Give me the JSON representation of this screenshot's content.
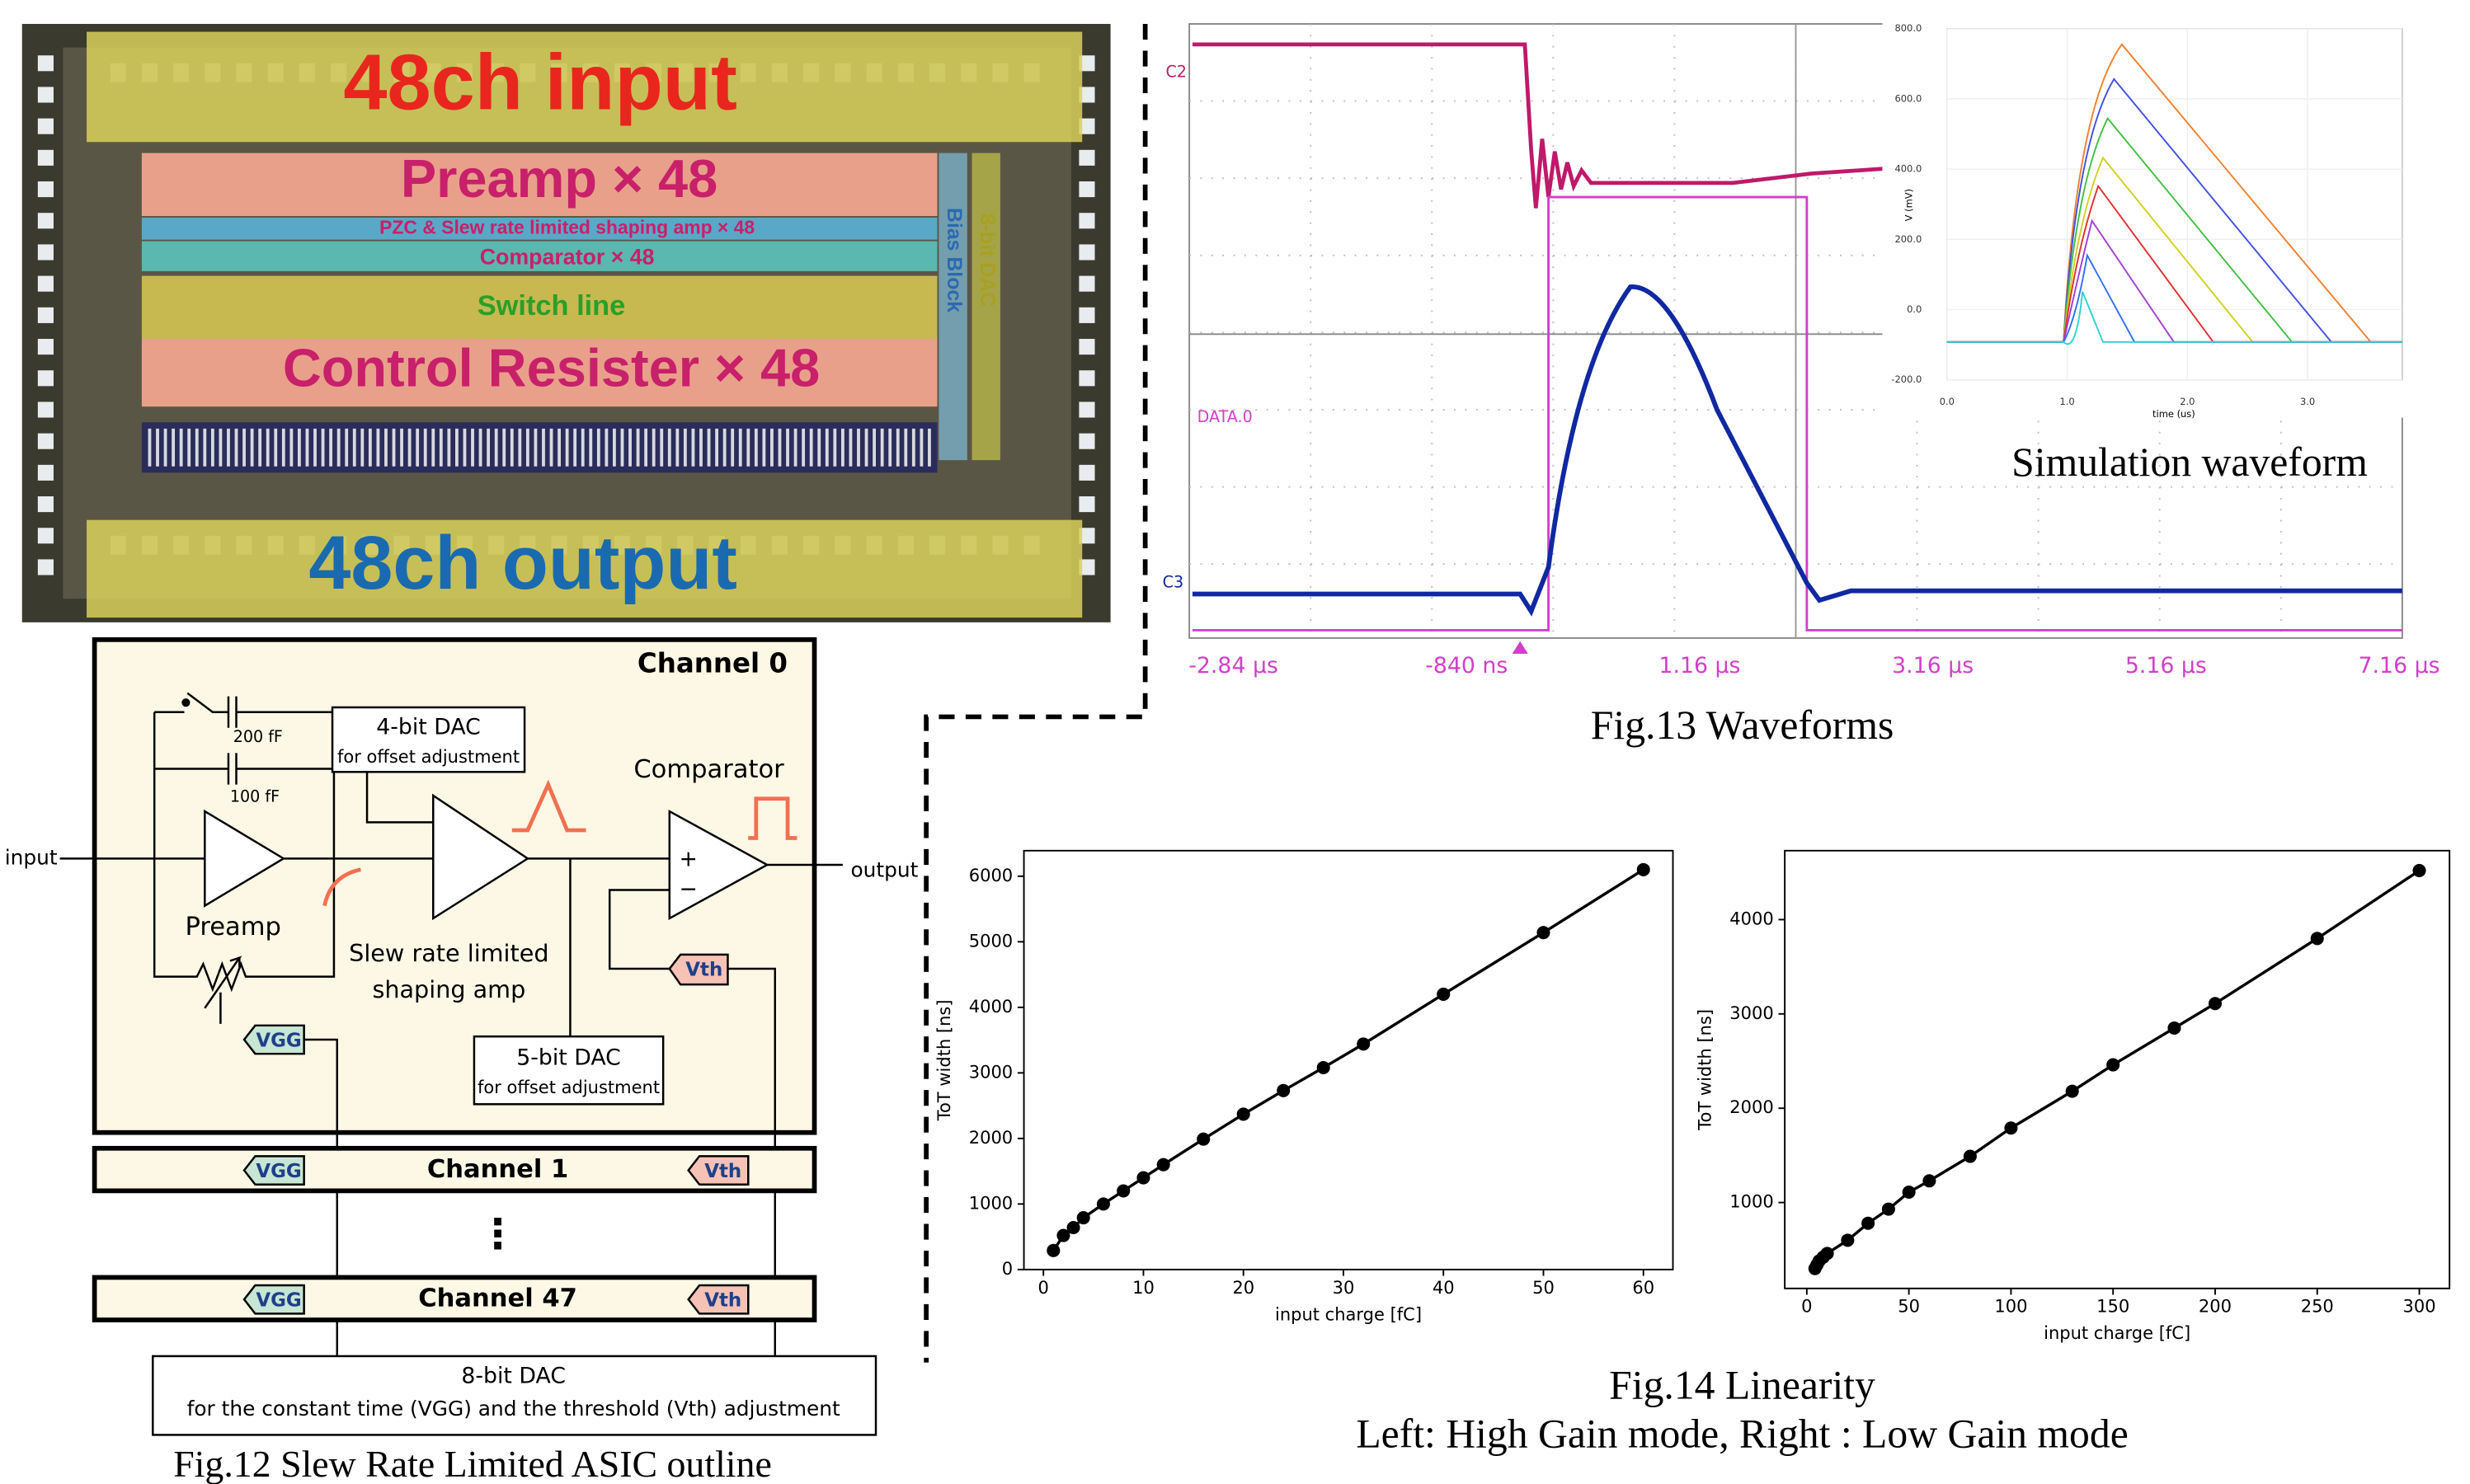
{
  "chip_photo": {
    "labels": {
      "input": "48ch input",
      "preamp": "Preamp × 48",
      "shaping": "PZC & Slew rate limited shaping amp × 48",
      "comparator": "Comparator × 48",
      "switch": "Switch line",
      "control": "Control Resister × 48",
      "output": "48ch output",
      "bias": "Bias Block",
      "dac": "8-bit DAC"
    }
  },
  "schematic": {
    "channel0": "Channel 0",
    "dac4": {
      "title": "4-bit DAC",
      "sub": "for offset adjustment"
    },
    "comparator": "Comparator",
    "cap1": "200 fF",
    "cap2": "100 fF",
    "input": "input",
    "output": "output",
    "preamp": "Preamp",
    "shaper": [
      "Slew rate limited",
      "shaping amp"
    ],
    "plus": "+",
    "minus": "−",
    "vth": "Vth",
    "vgg": "VGG",
    "dac5": {
      "title": "5-bit DAC",
      "sub": "for offset adjustment"
    },
    "channel1": "Channel 1",
    "dots": "⋮",
    "channel47": "Channel 47",
    "dac8": {
      "title": "8-bit DAC",
      "sub": "for the constant time (VGG) and the threshold (Vth) adjustment"
    },
    "caption": "Fig.12 Slew Rate Limited ASIC outline"
  },
  "waveforms": {
    "traces": {
      "c2": "C2",
      "data0": "DATA.0",
      "c3": "C3"
    },
    "xticks": [
      "-2.84 µs",
      "-840 ns",
      "1.16 µs",
      "3.16 µs",
      "5.16 µs",
      "7.16 µs"
    ],
    "inset": {
      "yticks": [
        "800.0",
        "600.0",
        "400.0",
        "200.0",
        "0.0",
        "-200.0"
      ],
      "xticks": [
        "0.0",
        "1.0",
        "2.0",
        "3.0"
      ],
      "ylabel": "V (mV)",
      "xlabel": "time (us)",
      "title": "Simulation waveform"
    },
    "caption": "Fig.13 Waveforms"
  },
  "chart_data": [
    {
      "type": "scatter",
      "x_label": "input charge [fC]",
      "y_label": "ToT width [ns]",
      "x": [
        1,
        2,
        3,
        4,
        6,
        8,
        10,
        12,
        16,
        20,
        24,
        28,
        32,
        40,
        50,
        60
      ],
      "values": [
        290,
        520,
        640,
        790,
        1000,
        1200,
        1400,
        1600,
        1990,
        2370,
        2730,
        3080,
        3440,
        4200,
        5140,
        6100
      ],
      "color": "#000000",
      "xlim": [
        -1.95,
        62.95
      ],
      "ylim": [
        0,
        6390
      ],
      "xticks": [
        0,
        10,
        20,
        30,
        40,
        50,
        60
      ],
      "yticks": [
        0,
        1000,
        2000,
        3000,
        4000,
        5000,
        6000
      ]
    },
    {
      "type": "scatter",
      "x_label": "input charge [fC]",
      "y_label": "ToT width [ns]",
      "x": [
        4,
        5,
        6,
        8,
        10,
        20,
        30,
        40,
        50,
        60,
        80,
        100,
        130,
        150,
        180,
        200,
        250,
        300
      ],
      "values": [
        300,
        340,
        380,
        420,
        460,
        600,
        780,
        930,
        1110,
        1230,
        1490,
        1790,
        2180,
        2460,
        2850,
        3110,
        3800,
        4520
      ],
      "color": "#000000",
      "xlim": [
        -10.8,
        314.8
      ],
      "ylim": [
        89,
        4731
      ],
      "xticks": [
        0,
        50,
        100,
        150,
        200,
        250,
        300
      ],
      "yticks": [
        1000,
        2000,
        3000,
        4000
      ]
    }
  ],
  "linearity": {
    "caption": "Fig.14 Linearity",
    "subcaption": "Left: High Gain mode, Right : Low Gain mode"
  }
}
